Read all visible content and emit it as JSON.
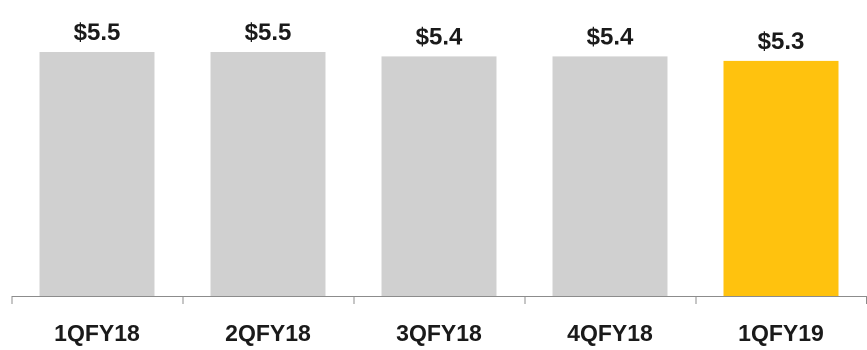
{
  "chart_data": {
    "type": "bar",
    "title": "",
    "xlabel": "",
    "ylabel": "",
    "categories": [
      "1QFY18",
      "2QFY18",
      "3QFY18",
      "4QFY18",
      "1QFY19"
    ],
    "values": [
      5.5,
      5.5,
      5.4,
      5.4,
      5.3
    ],
    "data_labels": [
      "$5.5",
      "$5.5",
      "$5.4",
      "$5.4",
      "$5.3"
    ],
    "ylim": [
      0,
      5.5
    ],
    "grid": false,
    "legend": "none",
    "bar_colors": [
      "#d0d0d0",
      "#d0d0d0",
      "#d0d0d0",
      "#d0d0d0",
      "#ffc20e"
    ],
    "axis_color": "#8c8c8c"
  }
}
